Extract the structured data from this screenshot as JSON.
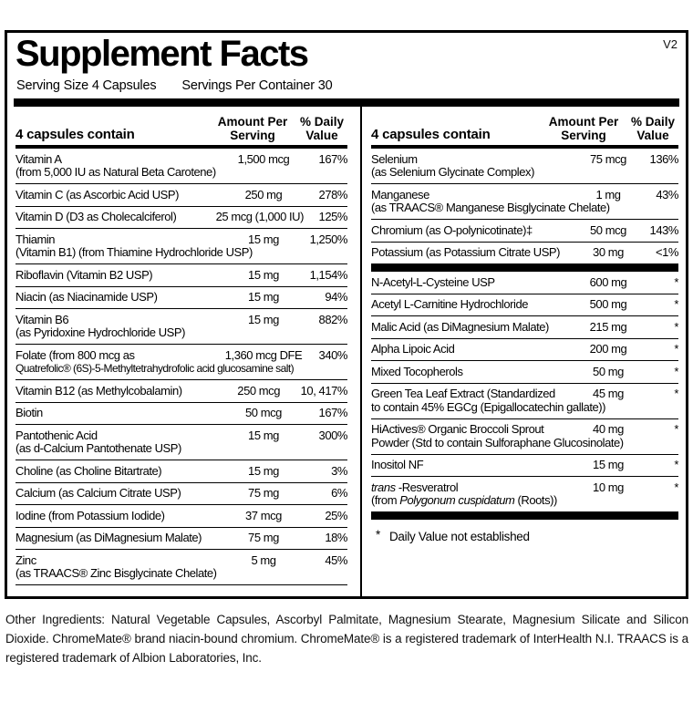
{
  "version": "V2",
  "title": "Supplement Facts",
  "serving": {
    "size": "Serving Size  4 Capsules",
    "per_container": "Servings Per Container 30"
  },
  "column_header": {
    "contain": "4 capsules contain",
    "amount": "Amount Per Serving",
    "dv": "% Daily Value"
  },
  "left_column": {
    "rows": [
      {
        "name": "Vitamin A",
        "name2": "(from 5,000 IU as Natural Beta Carotene)",
        "amount": "1,500 mcg",
        "dv": "167%"
      },
      {
        "name": "Vitamin C (as Ascorbic Acid USP)",
        "amount": "250 mg",
        "dv": "278%"
      },
      {
        "name": "Vitamin D (D3 as Cholecalciferol)",
        "amount": "25 mcg (1,000 IU)",
        "dv": "125%"
      },
      {
        "name": "Thiamin",
        "name2": "(Vitamin B1) (from Thiamine Hydrochloride USP)",
        "amount": "15 mg",
        "dv": "1,250%"
      },
      {
        "name": "Riboflavin (Vitamin B2 USP)",
        "amount": "15 mg",
        "dv": "1,154%"
      },
      {
        "name": "Niacin (as Niacinamide USP)",
        "amount": "15 mg",
        "dv": "94%"
      },
      {
        "name": "Vitamin B6",
        "name2": "(as Pyridoxine Hydrochloride USP)",
        "amount": "15 mg",
        "dv": "882%"
      },
      {
        "name": "Folate (from 800 mcg as",
        "name2": "Quatrefolic® (6S)-5-Methyltetrahydrofolic acid glucosamine salt)",
        "amount": "1,360 mcg DFE",
        "dv": "340%"
      },
      {
        "name": "Vitamin B12 (as Methylcobalamin)",
        "amount": "250 mcg",
        "dv": "10, 417%"
      },
      {
        "name": "Biotin",
        "amount": "50 mcg",
        "dv": "167%"
      },
      {
        "name": "Pantothenic Acid",
        "name2": "(as d-Calcium Pantothenate USP)",
        "amount": "15 mg",
        "dv": "300%"
      },
      {
        "name": "Choline (as Choline Bitartrate)",
        "amount": "15 mg",
        "dv": "3%"
      },
      {
        "name": "Calcium (as Calcium Citrate USP)",
        "amount": "75 mg",
        "dv": "6%"
      },
      {
        "name": "Iodine (from Potassium Iodide)",
        "amount": "37 mcg",
        "dv": "25%"
      },
      {
        "name": "Magnesium (as DiMagnesium Malate)",
        "amount": "75 mg",
        "dv": "18%"
      },
      {
        "name": "Zinc",
        "name2": "(as TRAACS® Zinc Bisglycinate Chelate)",
        "amount": "5 mg",
        "dv": "45%"
      }
    ]
  },
  "right_column": {
    "minerals": [
      {
        "name": "Selenium",
        "name2": "(as Selenium Glycinate Complex)",
        "amount": "75 mcg",
        "dv": "136%"
      },
      {
        "name": "Manganese",
        "name2": "(as TRAACS® Manganese Bisglycinate Chelate)",
        "amount": "1 mg",
        "dv": "43%"
      },
      {
        "name": "Chromium (as O-polynicotinate)‡",
        "amount": "50 mcg",
        "dv": "143%"
      },
      {
        "name": "Potassium (as Potassium Citrate USP)",
        "amount": "30 mg",
        "dv": "<1%"
      }
    ],
    "other": [
      {
        "name": "N-Acetyl-L-Cysteine USP",
        "amount": "600 mg",
        "dv": "*"
      },
      {
        "name": "Acetyl L-Carnitine Hydrochloride",
        "amount": "500 mg",
        "dv": "*"
      },
      {
        "name": "Malic Acid (as DiMagnesium Malate)",
        "amount": "215 mg",
        "dv": "*"
      },
      {
        "name": "Alpha Lipoic Acid",
        "amount": "200 mg",
        "dv": "*"
      },
      {
        "name": "Mixed Tocopherols",
        "amount": "50 mg",
        "dv": "*"
      },
      {
        "name": "Green Tea Leaf Extract (Standardized",
        "name2": "to contain 45% EGCg (Epigallocatechin gallate))",
        "amount": "45 mg",
        "dv": "*"
      },
      {
        "name": "HiActives® Organic Broccoli Sprout",
        "name2": "Powder (Std to contain Sulforaphane Glucosinolate)",
        "amount": "40 mg",
        "dv": "*"
      },
      {
        "name": "Inositol NF",
        "amount": "15 mg",
        "dv": "*"
      },
      {
        "name_segments": [
          {
            "t": "trans",
            "i": true
          },
          {
            "t": " -Resveratrol",
            "i": false
          }
        ],
        "name2_segments": [
          {
            "t": "(from ",
            "i": false
          },
          {
            "t": "Polygonum cuspidatum",
            "i": true
          },
          {
            "t": " (Roots))",
            "i": false
          }
        ],
        "amount": "10 mg",
        "dv": "*"
      }
    ],
    "footnote_symbol": "*",
    "footnote_text": "Daily Value not established"
  },
  "other_ingredients": "Other Ingredients: Natural Vegetable Capsules, Ascorbyl Palmitate, Magnesium Stearate, Magnesium Silicate and Silicon Dioxide. ChromeMate® brand niacin-bound chromium. ChromeMate® is a registered trademark of InterHealth N.I. TRAACS is a registered trademark of Albion Laboratories, Inc.",
  "colors": {
    "text": "#000000",
    "background": "#ffffff",
    "rule": "#000000"
  }
}
